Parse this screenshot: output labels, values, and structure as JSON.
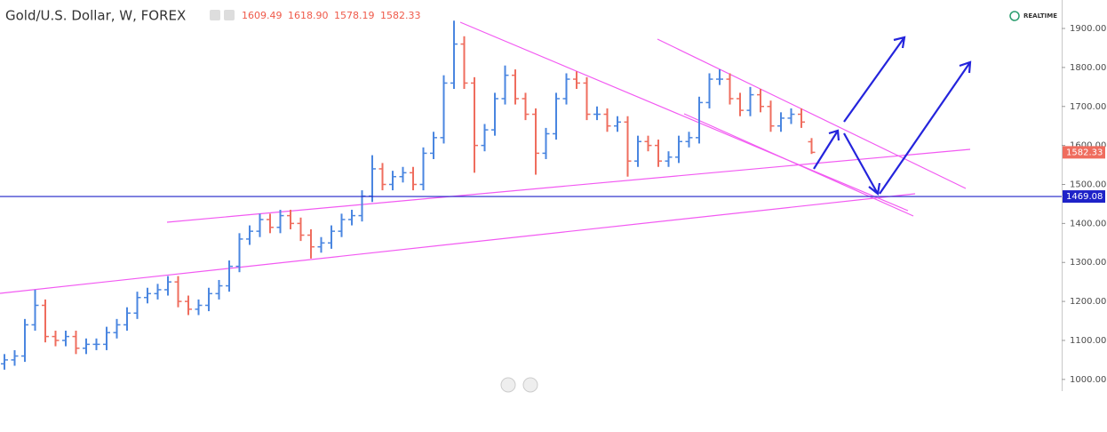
{
  "chart_data": {
    "type": "ohlc",
    "title": "Gold/U.S. Dollar, W, FOREX",
    "status": "REALTIME",
    "up_color": "#4a86e0",
    "down_color": "#ef6d5e",
    "hline_color": "#1e22c8",
    "ylim": [
      970,
      1973
    ],
    "yticks": [
      {
        "value": 1000,
        "label": "1000.00"
      },
      {
        "value": 1100,
        "label": "1100.00"
      },
      {
        "value": 1200,
        "label": "1200.00"
      },
      {
        "value": 1300,
        "label": "1300.00"
      },
      {
        "value": 1400,
        "label": "1400.00"
      },
      {
        "value": 1500,
        "label": "1500.00"
      },
      {
        "value": 1600,
        "label": "1600.00"
      },
      {
        "value": 1700,
        "label": "1700.00"
      },
      {
        "value": 1800,
        "label": "1800.00"
      },
      {
        "value": 1900,
        "label": "1900.00"
      }
    ],
    "hline": 1469.08,
    "last_bar_labels": [
      "1609.49",
      "1618.90",
      "1578.19",
      "1582.33"
    ],
    "bars": {
      "open": [
        1040,
        1050,
        1060,
        1140,
        1190,
        1110,
        1100,
        1110,
        1080,
        1090,
        1090,
        1120,
        1140,
        1170,
        1210,
        1220,
        1230,
        1250,
        1200,
        1180,
        1190,
        1220,
        1240,
        1290,
        1360,
        1380,
        1410,
        1390,
        1420,
        1400,
        1370,
        1340,
        1350,
        1380,
        1410,
        1420,
        1470,
        1540,
        1500,
        1520,
        1530,
        1500,
        1580,
        1620,
        1760,
        1860,
        1760,
        1600,
        1640,
        1720,
        1780,
        1720,
        1680,
        1580,
        1630,
        1720,
        1770,
        1760,
        1680,
        1680,
        1650,
        1660,
        1560,
        1610,
        1600,
        1560,
        1570,
        1610,
        1620,
        1710,
        1770,
        1770,
        1720,
        1690,
        1730,
        1700,
        1650,
        1670,
        1680,
        1609.49
      ],
      "high": [
        1065,
        1075,
        1155,
        1230,
        1205,
        1125,
        1125,
        1125,
        1105,
        1105,
        1135,
        1155,
        1185,
        1225,
        1235,
        1245,
        1265,
        1265,
        1215,
        1205,
        1235,
        1255,
        1305,
        1375,
        1395,
        1425,
        1425,
        1435,
        1435,
        1415,
        1385,
        1365,
        1395,
        1425,
        1435,
        1485,
        1575,
        1555,
        1535,
        1545,
        1545,
        1595,
        1635,
        1780,
        1920,
        1880,
        1775,
        1655,
        1735,
        1805,
        1795,
        1735,
        1695,
        1645,
        1735,
        1785,
        1790,
        1775,
        1700,
        1695,
        1675,
        1675,
        1625,
        1625,
        1615,
        1585,
        1625,
        1635,
        1725,
        1785,
        1795,
        1785,
        1735,
        1750,
        1745,
        1715,
        1685,
        1695,
        1695,
        1618.9
      ],
      "low": [
        1025,
        1035,
        1045,
        1125,
        1095,
        1085,
        1085,
        1065,
        1065,
        1075,
        1075,
        1105,
        1125,
        1155,
        1195,
        1205,
        1215,
        1185,
        1165,
        1165,
        1175,
        1205,
        1225,
        1275,
        1345,
        1365,
        1375,
        1375,
        1385,
        1355,
        1310,
        1325,
        1335,
        1365,
        1395,
        1405,
        1455,
        1485,
        1485,
        1505,
        1485,
        1485,
        1565,
        1605,
        1745,
        1745,
        1530,
        1585,
        1625,
        1705,
        1705,
        1665,
        1525,
        1565,
        1615,
        1705,
        1745,
        1665,
        1665,
        1635,
        1635,
        1520,
        1545,
        1585,
        1545,
        1545,
        1555,
        1595,
        1605,
        1695,
        1755,
        1705,
        1675,
        1675,
        1685,
        1635,
        1635,
        1655,
        1645,
        1578.19
      ],
      "close": [
        1050,
        1060,
        1140,
        1190,
        1110,
        1100,
        1110,
        1080,
        1090,
        1090,
        1120,
        1140,
        1170,
        1210,
        1220,
        1230,
        1250,
        1200,
        1180,
        1190,
        1220,
        1240,
        1290,
        1360,
        1380,
        1410,
        1390,
        1420,
        1400,
        1370,
        1340,
        1350,
        1380,
        1410,
        1420,
        1470,
        1540,
        1500,
        1520,
        1530,
        1500,
        1580,
        1620,
        1760,
        1860,
        1760,
        1600,
        1640,
        1720,
        1780,
        1720,
        1680,
        1580,
        1630,
        1720,
        1770,
        1760,
        1680,
        1680,
        1650,
        1660,
        1560,
        1610,
        1600,
        1560,
        1570,
        1610,
        1620,
        1710,
        1770,
        1770,
        1720,
        1690,
        1730,
        1700,
        1650,
        1670,
        1680,
        1660,
        1582.33
      ]
    }
  }
}
